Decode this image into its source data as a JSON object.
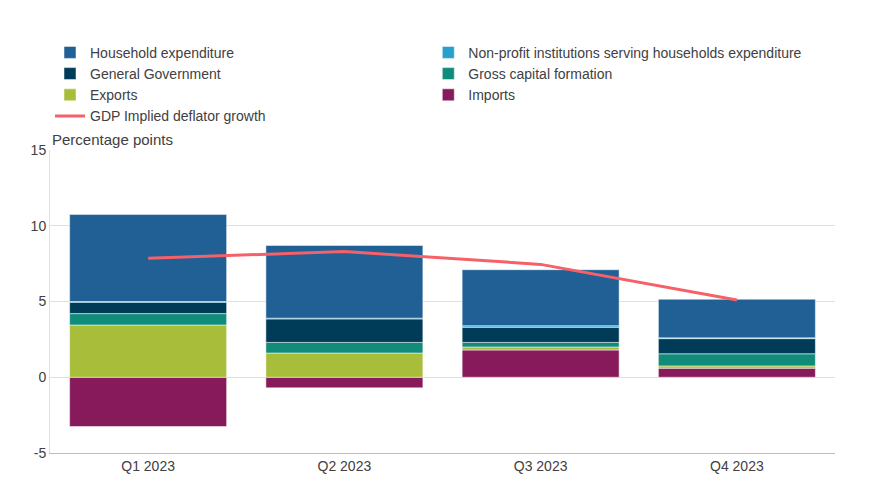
{
  "chart_data": {
    "type": "bar",
    "ylabel": "Percentage points",
    "categories": [
      "Q1 2023",
      "Q2 2023",
      "Q3 2023",
      "Q4 2023"
    ],
    "stacked": true,
    "grid": true,
    "legend": "top",
    "ylim": [
      -5,
      15
    ],
    "yticks": [
      -5,
      0,
      5,
      10,
      15
    ],
    "series": [
      {
        "name": "Household expenditure",
        "color": "#206095",
        "values": [
          5.75,
          4.8,
          3.7,
          2.55
        ]
      },
      {
        "name": "Non-profit institutions serving households expenditure",
        "color": "#27a0cc",
        "values": [
          0.05,
          0.05,
          0.1,
          0.05
        ]
      },
      {
        "name": "General Government",
        "color": "#003c57",
        "values": [
          0.75,
          1.55,
          1.0,
          1.0
        ]
      },
      {
        "name": "Gross capital formation",
        "color": "#118c7b",
        "values": [
          0.75,
          0.7,
          0.3,
          0.8
        ]
      },
      {
        "name": "Exports",
        "color": "#a8bd3a",
        "values": [
          3.45,
          1.6,
          0.2,
          0.15
        ]
      },
      {
        "name": "Imports",
        "color": "#871a5b",
        "values": [
          -3.25,
          -0.7,
          1.8,
          0.6
        ]
      },
      {
        "name": "GDP Implied deflator growth",
        "color": "#f66068",
        "type": "line",
        "values": [
          7.85,
          8.3,
          7.45,
          5.1
        ]
      }
    ]
  }
}
